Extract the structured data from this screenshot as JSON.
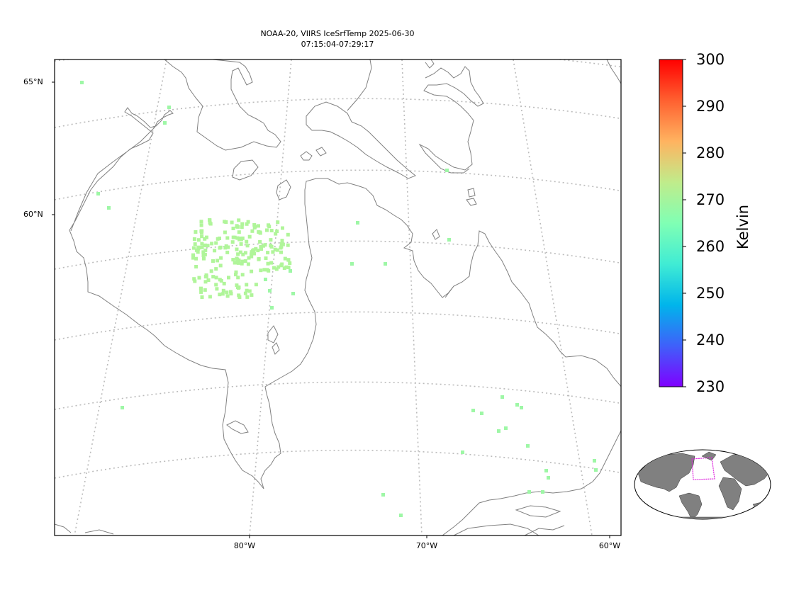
{
  "title": {
    "line1": "NOAA-20, VIIRS IceSrfTemp 2025-06-30",
    "line2": "07:15:04-07:29:17"
  },
  "map": {
    "projection": "lambert-conformal",
    "gridlines": "dotted",
    "coastline_color": "#808080",
    "lat_labels": [
      "65°N",
      "60°N"
    ],
    "lon_labels": [
      "80°W",
      "70°W",
      "60°W"
    ]
  },
  "colorbar": {
    "label": "Kelvin",
    "ticks": [
      "300",
      "290",
      "280",
      "270",
      "260",
      "250",
      "240",
      "230"
    ],
    "range": [
      230,
      300
    ],
    "colormap": "rainbow",
    "colors": [
      "#7f00ff",
      "#3f60fa",
      "#00b5eb",
      "#40ecd4",
      "#80ffb4",
      "#c0ec8b",
      "#ffb360",
      "#ff6030",
      "#ff0000"
    ]
  },
  "chart_data": {
    "type": "scatter",
    "title": "NOAA-20, VIIRS IceSrfTemp 2025-06-30 07:15:04-07:29:17",
    "value_label": "Kelvin",
    "value_range": [
      230,
      300
    ],
    "typical_value": 269,
    "point_color": "#a8f79a"
  },
  "inset": {
    "type": "world-locator",
    "land_color": "#808080",
    "box_color": "#dd22dd"
  }
}
